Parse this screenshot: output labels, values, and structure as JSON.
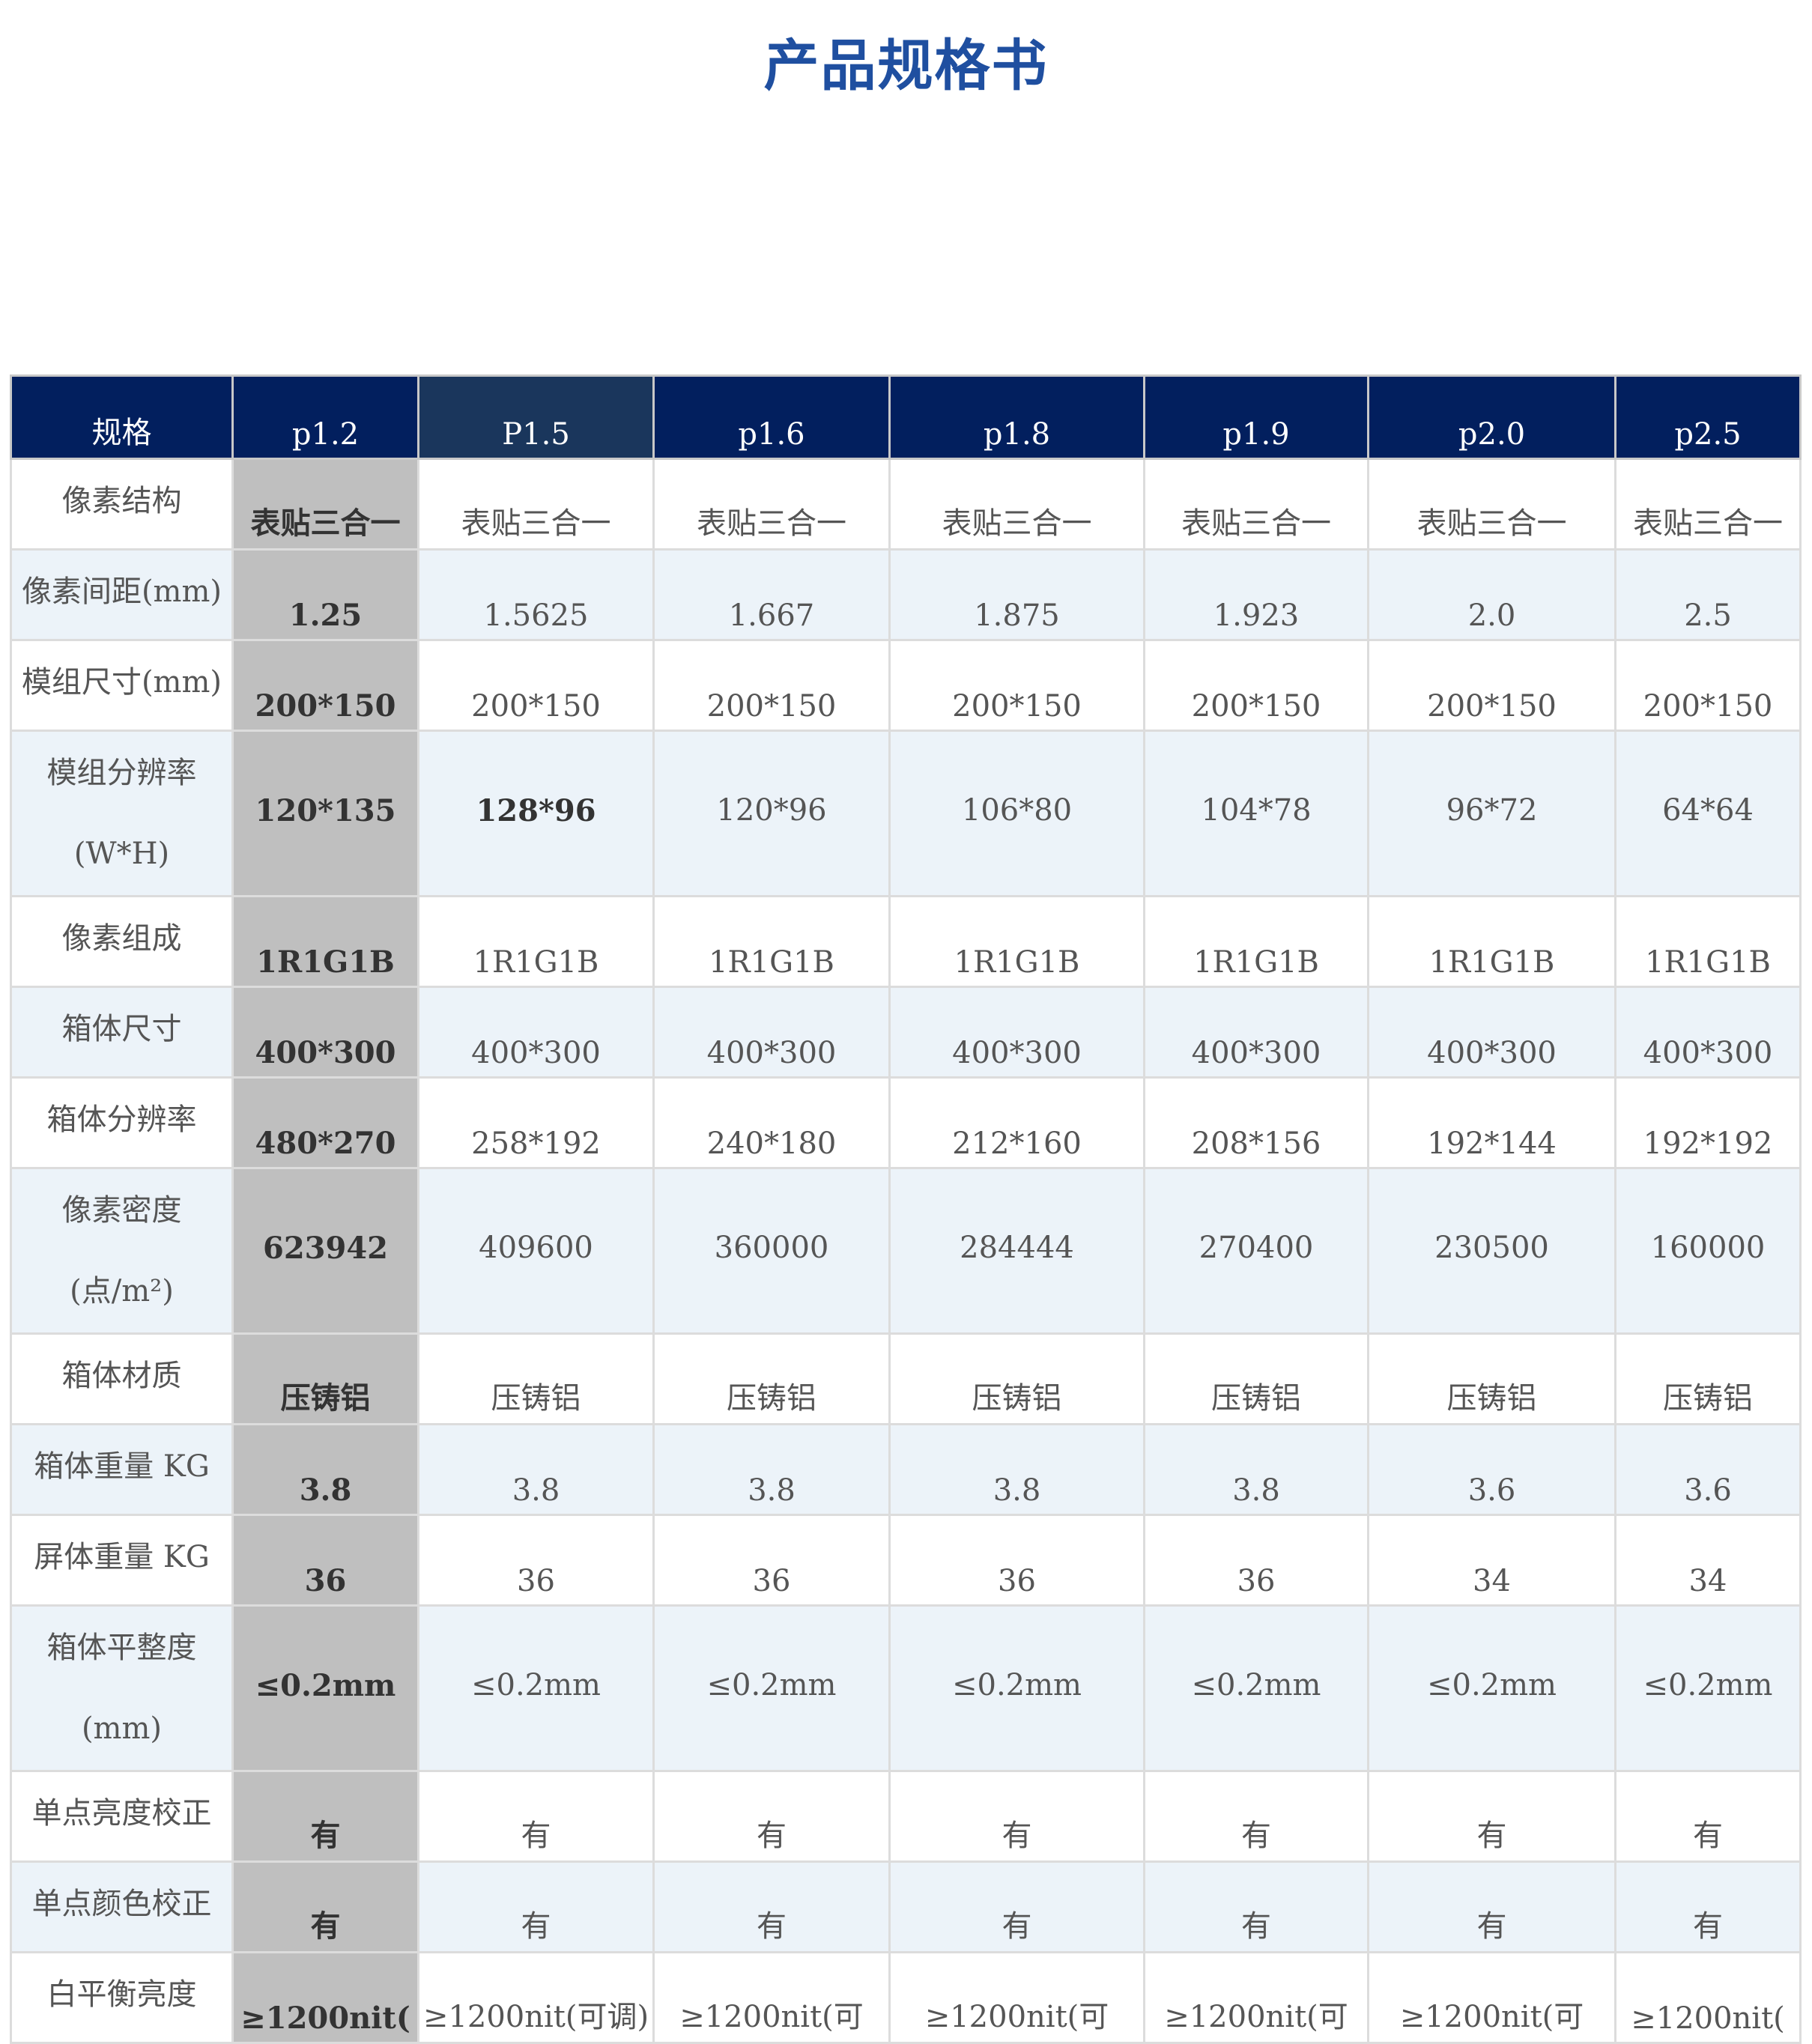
{
  "title": "产品规格书",
  "table": {
    "headers": [
      "规格",
      "p1.2",
      "P1.5",
      "p1.6",
      "p1.8",
      "p1.9",
      "p2.0",
      "p2.5"
    ],
    "rows": [
      {
        "label": "像素结构",
        "values": [
          "表贴三合一",
          "表贴三合一",
          "表贴三合一",
          "表贴三合一",
          "表贴三合一",
          "表贴三合一",
          "表贴三合一"
        ]
      },
      {
        "label": "像素间距(mm)",
        "values": [
          "1.25",
          "1.5625",
          "1.667",
          "1.875",
          "1.923",
          "2.0",
          "2.5"
        ]
      },
      {
        "label": "模组尺寸(mm)",
        "values": [
          "200*150",
          "200*150",
          "200*150",
          "200*150",
          "200*150",
          "200*150",
          "200*150"
        ]
      },
      {
        "label": "模组分辨率(W*H)",
        "values": [
          "120*135",
          "128*96",
          "120*96",
          "106*80",
          "104*78",
          "96*72",
          "64*64"
        ],
        "tall": true
      },
      {
        "label": "像素组成",
        "values": [
          "1R1G1B",
          "1R1G1B",
          "1R1G1B",
          "1R1G1B",
          "1R1G1B",
          "1R1G1B",
          "1R1G1B"
        ]
      },
      {
        "label": "箱体尺寸",
        "values": [
          "400*300",
          "400*300",
          "400*300",
          "400*300",
          "400*300",
          "400*300",
          "400*300"
        ]
      },
      {
        "label": "箱体分辨率",
        "values": [
          "480*270",
          "258*192",
          "240*180",
          "212*160",
          "208*156",
          "192*144",
          "192*192"
        ]
      },
      {
        "label": "像素密度(点/m²)",
        "values": [
          "623942",
          "409600",
          "360000",
          "284444",
          "270400",
          "230500",
          "160000"
        ],
        "tall": true
      },
      {
        "label": "箱体材质",
        "values": [
          "压铸铝",
          "压铸铝",
          "压铸铝",
          "压铸铝",
          "压铸铝",
          "压铸铝",
          "压铸铝"
        ]
      },
      {
        "label": "箱体重量 KG",
        "values": [
          "3.8",
          "3.8",
          "3.8",
          "3.8",
          "3.8",
          "3.6",
          "3.6"
        ]
      },
      {
        "label": "屏体重量 KG",
        "values": [
          "36",
          "36",
          "36",
          "36",
          "36",
          "34",
          "34"
        ]
      },
      {
        "label": "箱体平整度(mm)",
        "values": [
          "≤0.2mm",
          "≤0.2mm",
          "≤0.2mm",
          "≤0.2mm",
          "≤0.2mm",
          "≤0.2mm",
          "≤0.2mm"
        ],
        "tall": true
      },
      {
        "label": "单点亮度校正",
        "values": [
          "有",
          "有",
          "有",
          "有",
          "有",
          "有",
          "有"
        ]
      },
      {
        "label": "单点颜色校正",
        "values": [
          "有",
          "有",
          "有",
          "有",
          "有",
          "有",
          "有"
        ]
      },
      {
        "label": "白平衡亮度",
        "values": [
          "≥1200nit(",
          "≥1200nit(可调)",
          "≥1200nit(可",
          "≥1200nit(可",
          "≥1200nit(可",
          "≥1200nit(可",
          "≥1200nit("
        ]
      }
    ]
  }
}
